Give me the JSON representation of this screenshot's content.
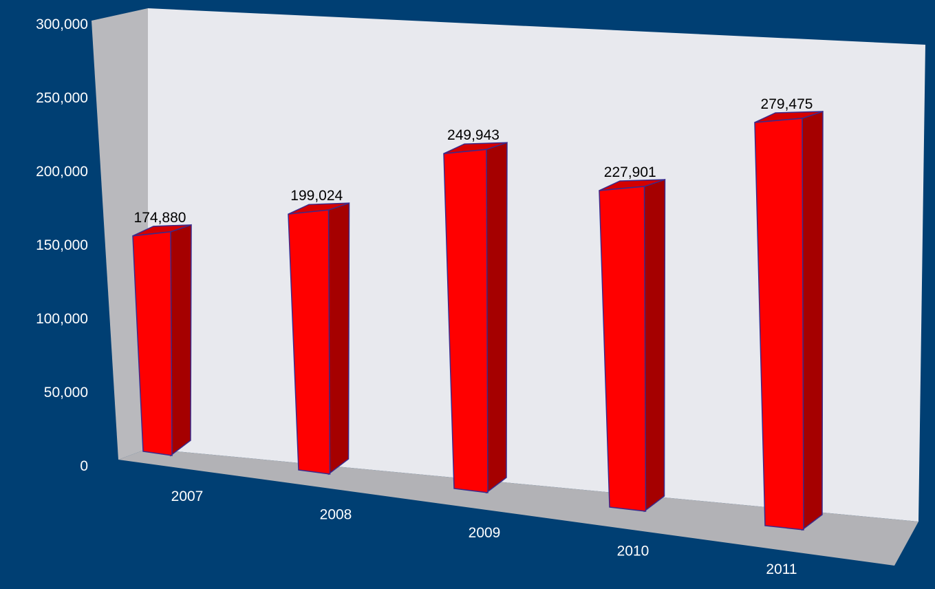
{
  "colors": {
    "background": "#003f73",
    "bar_front": "#ff0000",
    "bar_side": "#a50000",
    "bar_top": "#d40000",
    "bar_outline": "#3a2a8c",
    "back_wall": "#e8e9ee",
    "side_wall": "#b9b9bd",
    "floor": "#b2b2b6",
    "tick_text": "#ffffff",
    "value_text": "#000000"
  },
  "chart_data": {
    "type": "bar",
    "style": "3d-column",
    "categories": [
      "2007",
      "2008",
      "2009",
      "2010",
      "2011"
    ],
    "values": [
      174880,
      199024,
      249943,
      227901,
      279475
    ],
    "value_labels": [
      "174,880",
      "199,024",
      "249,943",
      "227,901",
      "279,475"
    ],
    "y_ticks": [
      "0",
      "50,000",
      "100,000",
      "150,000",
      "200,000",
      "250,000",
      "300,000"
    ],
    "ylim": [
      0,
      300000
    ],
    "grid": false,
    "legend": "none"
  }
}
